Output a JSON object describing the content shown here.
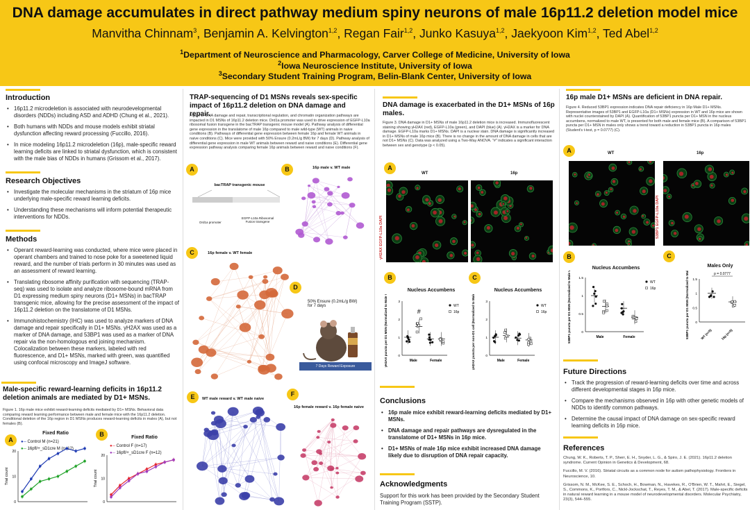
{
  "header": {
    "title": "DNA damage accumulates in direct pathway medium spiny neurons of male 16p11.2 deletion model mice",
    "authors": [
      {
        "name": "Manvitha Chinnam",
        "sup": "3"
      },
      {
        "name": "Benjamin A. Kelvington",
        "sup": "1,2"
      },
      {
        "name": "Regan Fair",
        "sup": "1,2"
      },
      {
        "name": "Junko Kasuya",
        "sup": "1,2"
      },
      {
        "name": "Jaekyoon Kim",
        "sup": "1,2"
      },
      {
        "name": "Ted Abel",
        "sup": "1,2"
      }
    ],
    "affiliations": [
      {
        "sup": "1",
        "text": "Department of Neuroscience and Pharmacology, Carver College of Medicine, University of Iowa"
      },
      {
        "sup": "2",
        "text": "Iowa Neuroscience Institute, University of Iowa"
      },
      {
        "sup": "3",
        "text": "Secondary Student Training Program, Belin-Blank Center, University of Iowa"
      }
    ]
  },
  "col1": {
    "intro_title": "Introduction",
    "intro": [
      "16p11.2 microdeletion is associated with neurodevelopmental disorders (NDDs) including ASD and ADHD (Chung et al., 2021).",
      "Both humans with NDDs and mouse models exhibit striatal dysfunction affecting reward processing (Fuccillo, 2016).",
      "In mice modeling 16p11.2 microdeletion (16p), male-specific reward learning deficits are linked to striatal dysfunction, which is consistent with the male bias of NDDs in humans (Grissom et al., 2017)."
    ],
    "obj_title": "Research Objectives",
    "objectives": [
      "Investigate the molecular mechanisms in the striatum of 16p mice underlying male-specific reward learning deficits.",
      "Understanding these mechanisms will inform potential therapeutic interventions for NDDs."
    ],
    "methods_title": "Methods",
    "methods": [
      "Operant reward-learning was conducted, where mice were placed in operant chambers and trained to nose poke for a sweetened liquid reward, and the number of trials perform in 30 minutes was used as an assessment of reward learning.",
      "Translating ribosome affinity purification with sequencing (TRAP-seq) was used to isolate and analyze ribosome-bound mRNA from D1 expressing medium spiny neurons (D1+ MSNs) in bacTRAP transgenic mice, allowing for the precise assessment of the impact of 16p11.2 deletion on the translatome of D1 MSNs.",
      "Immunohistochemistry (IHC) was used to analyze markers of DNA damage and repair specifically in D1+ MSNs. γH2AX was used as a marker of DNA damage, and 53BP1 was used as a marker of DNA repair via the non-homologous end joining mechanism. Colocalization between these markers, labeled with red fluorescence, and D1+ MSNs, marked with green, was quantified using confocal microscopy and ImageJ software."
    ],
    "male_title": "Male-specific reward-learning deficits in 16p11.2 deletion animals are mediated by D1+ MSNs.",
    "male_caption": "Figure 1. 16p male mice exhibit reward-learning deficits mediated by D1+ MSNs. Behavioral data comparing reward learning performance between male and female mice with the 16p11.2 deletion. Conditional deletion of the 16p region in D1 MSNs produces reward-learning deficits in males (A), but not females (B).",
    "panel_a": "A",
    "panel_b": "B",
    "fixed_ratio": "Fixed Ratio",
    "trial_count": "Trial count",
    "chartA_legend": [
      "Control M (n=21)",
      "16pfl/+_sD1cre M (n=12)"
    ],
    "chartB_legend": [
      "Control F (n=17)",
      "16pfl/+_sD1cre F (n=12)"
    ]
  },
  "col2": {
    "title": "TRAP-sequencing of D1 MSNs reveals sex-specific impact of 16p11.2 deletion on DNA damage and repair.",
    "caption": "Figure 2. DNA damage and repair, transcriptional regulation, and chromatin organization pathways are impacted in D1 MSNs of 16p11.2 deletion mice. Drd1a promoter was used to drive expression of EGFP-L10a ribosomal fusion transgene in the bacTRAP transgenic mouse model (A). Pathway analysis of differential gene expression in the translatome of male 16p compared to male wild-type (WT) animals in naive conditions (B). Pathways of differential gene expression between female 16p and female WT animals in naive conditions (C). Mice were provided with 50% Ensure (0.2mL/g BW) for 7 days (D). Pathway analysis of differential gene expression in male WT animals between reward and naive conditions (E). Differential gene expression pathway analysis comparing female 16p animals between reward and naive conditions (F).",
    "badges": [
      "A",
      "B",
      "C",
      "D",
      "E",
      "F"
    ],
    "transgenic_title": "bacTRAP transgenic mouse",
    "drd1a": "Drd1a promoter",
    "egfp": "EGFP-L10a Ribosomal Fusion transgene",
    "net_b": "16p male v. WT male",
    "net_c": "16p female v. WT female",
    "ensure": "50% Ensure (0.2mL/g BW) for 7 days",
    "reward_exposure": "7 Days Reward Exposure",
    "net_e": "WT male reward v. WT male naive",
    "net_f": "16p female reward v. 16p female naive"
  },
  "col3": {
    "title": "DNA damage is exacerbated in the D1+ MSNs of 16p males.",
    "caption": "Figure 3. DNA damage in D1+ MSNs of male 16p11.2 deletion mice is increased. Immunofluorescent staining showing γH2AX (red), EGFP-L10a (green), and DAPI (blue) (A). γH2AX is a marker for DNA damage. EGFP-L10a marks D1+ MSNs. DAPI is a nuclear stain. DNA damage is significantly increased in D1+ MSNs of male 16p mice (B). There is no change in the amount of DNA damage in cells that are not D1+ MSNs (C). Data was analyzed using a Two-Way ANOVA. \"#\" indicates a significant interaction between sex and genotype (p < 0.05).",
    "badges": [
      "A",
      "B",
      "C"
    ],
    "wt": "WT",
    "p16": "16p",
    "stain_label": "γH2AX EGFP-L10a DAPI",
    "nucleus_accumbens": "Nucleus Accumbens",
    "ylabel_b": "γH2AX puncta per D1 MSN (Normalized to Male WT)",
    "ylabel_c": "γH2AX puncta per non-D1 cell (Normalized to Male WT)",
    "hash": "#",
    "male": "Male",
    "female": "Female",
    "conclusions_title": "Conclusions",
    "conclusions": [
      "16p male mice exhibit reward-learning deficits mediated by D1+ MSNs.",
      "DNA damage and repair pathways are dysregulated in the translatome of D1+ MSNs in 16p mice.",
      "D1+ MSNs of male 16p mice exhibit increased DNA damage likely due to disruption of DNA repair capacity."
    ],
    "ack_title": "Acknowledgments",
    "ack": "Support for this work has been provided by the Secondary Student Training Program (SSTP)."
  },
  "col4": {
    "title": "16p male D1+ MSNs are deficient in DNA repair.",
    "caption": "Figure 4. Reduced 53BP1 expression indicates DNA repair deficiency in 16p Male D1+ MSNs. Representative images of 53BP1 and EGFP-L10a (D1+ MSNs) expression in WT and 16p mice are shown with nuclei counterstained by DAPI (A). Quantification of 53BP1 puncta per D1+ MSN in the nucleus accumbens, normalized to male WT, is presented for both male and female mice (B). A comparison of 53BP1 puncta per D1+ MSN in males only shows a trend toward a reduction in 53BP1 puncta in 16p males (Student's t-test, p = 0.0777) (C).",
    "badges": [
      "A",
      "B",
      "C"
    ],
    "wt": "WT",
    "p16": "16p",
    "stain_label": "53BP1 EGFP-L10a DAPI",
    "nucleus_accumbens": "Nucleus Accumbens",
    "males_only": "Males Only",
    "pval": "p = 0.0777",
    "ylabel": "53BP1 puncta per D1 MSN (Normalized to Male WT)",
    "male": "Male",
    "female": "Female",
    "xcat": [
      "WT (n=5)",
      "16p (n=5)"
    ],
    "future_title": "Future Directions",
    "future": [
      "Track the progression of reward-learning deficits over time and across different developmental stages in 16p mice.",
      "Compare the mechanisms observed in 16p with other genetic models of NDDs to identify common pathways.",
      "Determine the causal impact of DNA damage on sex-specific reward learning deficits in 16p mice."
    ],
    "refs_title": "References",
    "refs": [
      "Chung, W. K., Roberts, T. P., Sherr, E. H., Snyder, L. G., & Spiro, J. E. (2021). 16p11.2 deletion syndrome. Current Opinion in Genetics & Development, 68.",
      "Fuccillo, M. V. (2016). Striatal circuits as a common node for autism pathophysiology. Frontiers in Neuroscience, 10.",
      "Grissom, N. M., McKee, S. E., Schoch, H., Bowman, N., Havekes, R., O'Brien, W. T., Mahrt, E., Siegel, S., Commons, K., Portfors, C., Nickl-Jockschat, T., Reyes, T. M., & Abel, T. (2017). Male-specific deficits in natural reward learning in a mouse model of neurodevelopmental disorders. Molecular Psychiatry, 23(3), 544–555."
    ]
  },
  "chart_data": [
    {
      "type": "line",
      "title": "Fixed Ratio",
      "ylabel": "Trial count",
      "ylim": [
        0,
        20
      ],
      "series": [
        {
          "name": "Control M (n=21)",
          "color": "#1f3bb3",
          "values": [
            4,
            9,
            14,
            17,
            19,
            21,
            20,
            21
          ]
        },
        {
          "name": "16pfl/+_sD1cre M (n=12)",
          "color": "#22a32a",
          "values": [
            2,
            5,
            8,
            9,
            10,
            12,
            14,
            16
          ]
        }
      ]
    },
    {
      "type": "line",
      "title": "Fixed Ratio",
      "ylabel": "Trial count",
      "ylim": [
        0,
        20
      ],
      "series": [
        {
          "name": "Control F (n=17)",
          "color": "#e5252d",
          "values": [
            3,
            7,
            10,
            12,
            14,
            16,
            17,
            18
          ]
        },
        {
          "name": "16pfl/+_sD1cre F (n=12)",
          "color": "#a03bbd",
          "values": [
            2,
            6,
            9,
            12,
            13,
            15,
            17,
            18
          ]
        }
      ]
    },
    {
      "type": "scatter",
      "title": "Nucleus Accumbens",
      "ylabel": "γH2AX puncta per D1 MSN (Normalized to Male WT)",
      "ylim": [
        0,
        3
      ],
      "categories": [
        "Male",
        "Female"
      ],
      "series": [
        {
          "name": "WT",
          "means": [
            1.0,
            0.9
          ]
        },
        {
          "name": "16p",
          "means": [
            1.6,
            0.9
          ]
        }
      ]
    },
    {
      "type": "scatter",
      "title": "Nucleus Accumbens",
      "ylabel": "γH2AX puncta per non-D1 cell (Normalized to Male WT)",
      "ylim": [
        0,
        3
      ],
      "categories": [
        "Male",
        "Female"
      ],
      "series": [
        {
          "name": "WT",
          "means": [
            1.0,
            0.95
          ]
        },
        {
          "name": "16p",
          "means": [
            1.1,
            0.85
          ]
        }
      ]
    },
    {
      "type": "scatter",
      "title": "Nucleus Accumbens",
      "ylabel": "53BP1 puncta per D1 MSN (Normalized to Male WT)",
      "ylim": [
        0,
        1.5
      ],
      "categories": [
        "Male",
        "Female"
      ],
      "series": [
        {
          "name": "WT",
          "means": [
            1.0,
            0.65
          ]
        },
        {
          "name": "16p",
          "means": [
            0.7,
            0.4
          ]
        }
      ]
    },
    {
      "type": "bar",
      "title": "Males Only",
      "ylabel": "53BP1 puncta per D1 MSN (Normalized to Male WT)",
      "ylim": [
        0,
        1.5
      ],
      "categories": [
        "WT (n=5)",
        "16p (n=5)"
      ],
      "values": [
        1.0,
        0.7
      ]
    }
  ]
}
